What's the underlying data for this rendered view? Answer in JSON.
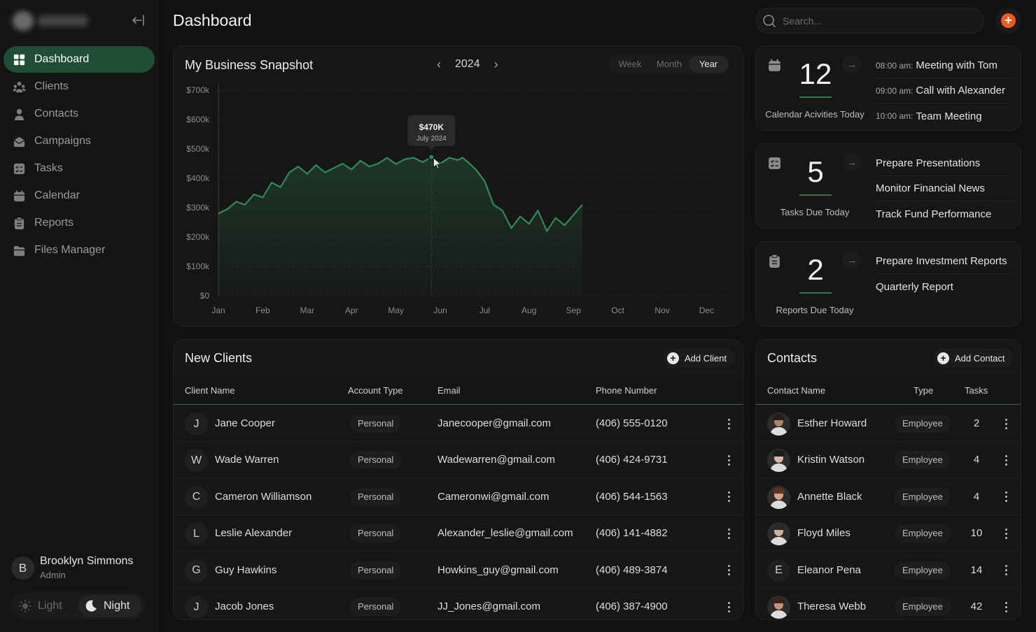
{
  "app": {
    "page_title": "Dashboard"
  },
  "sidebar": {
    "items": [
      {
        "label": "Dashboard",
        "icon": "grid-icon",
        "active": true
      },
      {
        "label": "Clients",
        "icon": "users-icon"
      },
      {
        "label": "Contacts",
        "icon": "contact-icon"
      },
      {
        "label": "Campaigns",
        "icon": "campaign-icon"
      },
      {
        "label": "Tasks",
        "icon": "tasks-icon"
      },
      {
        "label": "Calendar",
        "icon": "calendar-icon"
      },
      {
        "label": "Reports",
        "icon": "reports-icon"
      },
      {
        "label": "Files Manager",
        "icon": "folder-icon"
      }
    ],
    "user": {
      "initial": "B",
      "name": "Brooklyn Simmons",
      "role": "Admin"
    },
    "theme": {
      "light": "Light",
      "night": "Night"
    }
  },
  "header": {
    "search_placeholder": "Search..."
  },
  "snapshot": {
    "title": "My Business Snapshot",
    "year": "2024",
    "ranges": [
      "Week",
      "Month",
      "Year"
    ],
    "active_range": "Year",
    "tooltip": {
      "value": "$470K",
      "label": "July 2024"
    }
  },
  "chart_data": {
    "type": "area",
    "categories": [
      "Jan",
      "Feb",
      "Mar",
      "Apr",
      "May",
      "Jun",
      "Jul",
      "Aug",
      "Sep",
      "Oct",
      "Nov",
      "Dec"
    ],
    "y_ticks": [
      "$0",
      "$100k",
      "$200k",
      "$300k",
      "$400k",
      "$500k",
      "$600k",
      "$700k"
    ],
    "ylim": [
      0,
      700000
    ],
    "grid": true,
    "x": [
      0,
      0.2,
      0.4,
      0.6,
      0.8,
      1.0,
      1.2,
      1.4,
      1.6,
      1.8,
      2.0,
      2.2,
      2.4,
      2.6,
      2.8,
      3.0,
      3.2,
      3.4,
      3.6,
      3.8,
      4.0,
      4.2,
      4.4,
      4.6,
      4.8,
      5.0,
      5.2,
      5.4,
      5.5,
      5.6,
      5.8,
      6.0,
      6.2,
      6.4,
      6.6,
      6.8,
      7.0,
      7.2,
      7.4,
      7.6,
      7.8,
      8.0,
      8.2
    ],
    "values": [
      280000,
      295000,
      320000,
      310000,
      345000,
      335000,
      385000,
      370000,
      420000,
      440000,
      415000,
      445000,
      420000,
      435000,
      450000,
      430000,
      460000,
      440000,
      450000,
      470000,
      448000,
      465000,
      470000,
      455000,
      472000,
      450000,
      470000,
      462000,
      470000,
      458000,
      430000,
      390000,
      310000,
      290000,
      230000,
      270000,
      245000,
      290000,
      220000,
      265000,
      240000,
      275000,
      310000
    ]
  },
  "stats": [
    {
      "icon": "calendar-icon",
      "value": "12",
      "label": "Calendar Acivities Today",
      "items": [
        {
          "time": "08:00 am:",
          "text": "Meeting with Tom"
        },
        {
          "time": "09:00 am:",
          "text": "Call with Alexander"
        },
        {
          "time": "10:00 am:",
          "text": "Team Meeting"
        }
      ]
    },
    {
      "icon": "tasks-icon",
      "value": "5",
      "label": "Tasks Due Today",
      "items": [
        {
          "time": "",
          "text": "Prepare Presentations"
        },
        {
          "time": "",
          "text": "Monitor Financial News"
        },
        {
          "time": "",
          "text": "Track Fund Performance"
        }
      ]
    },
    {
      "icon": "reports-icon",
      "value": "2",
      "label": "Reports Due Today",
      "items": [
        {
          "time": "",
          "text": "Prepare Investment Reports"
        },
        {
          "time": "",
          "text": "Quarterly Report"
        }
      ]
    }
  ],
  "clients": {
    "title": "New Clients",
    "add_label": "Add Client",
    "columns": [
      "Client Name",
      "Account Type",
      "Email",
      "Phone Number"
    ],
    "rows": [
      {
        "initial": "J",
        "name": "Jane Cooper",
        "type": "Personal",
        "email": "Janecooper@gmail.com",
        "phone": "(406) 555-0120"
      },
      {
        "initial": "W",
        "name": "Wade Warren",
        "type": "Personal",
        "email": "Wadewarren@gmail.com",
        "phone": "(406) 424-9731"
      },
      {
        "initial": "C",
        "name": "Cameron Williamson",
        "type": "Personal",
        "email": "Cameronwi@gmail.com",
        "phone": "(406) 544-1563"
      },
      {
        "initial": "L",
        "name": "Leslie Alexander",
        "type": "Personal",
        "email": "Alexander_leslie@gmail.com",
        "phone": "(406) 141-4882"
      },
      {
        "initial": "G",
        "name": "Guy Hawkins",
        "type": "Personal",
        "email": "Howkins_guy@gmail.com",
        "phone": "(406) 489-3874"
      },
      {
        "initial": "J",
        "name": "Jacob Jones",
        "type": "Personal",
        "email": "JJ_Jones@gmail.com",
        "phone": "(406) 387-4900"
      }
    ]
  },
  "contacts": {
    "title": "Contacts",
    "add_label": "Add Contact",
    "columns": [
      "Contact Name",
      "Type",
      "Tasks"
    ],
    "rows": [
      {
        "name": "Esther Howard",
        "type": "Employee",
        "tasks": "2",
        "photo": true,
        "initial": "",
        "skin": "#b08366",
        "hair": "#2a1d16"
      },
      {
        "name": "Kristin Watson",
        "type": "Employee",
        "tasks": "4",
        "photo": true,
        "initial": "",
        "skin": "#d8b8a5",
        "hair": "#1e1a18"
      },
      {
        "name": "Annette Black",
        "type": "Employee",
        "tasks": "4",
        "photo": true,
        "initial": "",
        "skin": "#d6a388",
        "hair": "#5a3321"
      },
      {
        "name": "Floyd Miles",
        "type": "Employee",
        "tasks": "10",
        "photo": true,
        "initial": "",
        "skin": "#d2b19a",
        "hair": "#2e2622"
      },
      {
        "name": "Eleanor Pena",
        "type": "Employee",
        "tasks": "14",
        "photo": false,
        "initial": "E",
        "skin": "",
        "hair": ""
      },
      {
        "name": "Theresa Webb",
        "type": "Employee",
        "tasks": "42",
        "photo": true,
        "initial": "",
        "skin": "#c69478",
        "hair": "#3b221a"
      }
    ]
  },
  "colors": {
    "accent": "#1f4d35",
    "line": "#2f8a58",
    "brand_orange": "#f25a1f"
  }
}
